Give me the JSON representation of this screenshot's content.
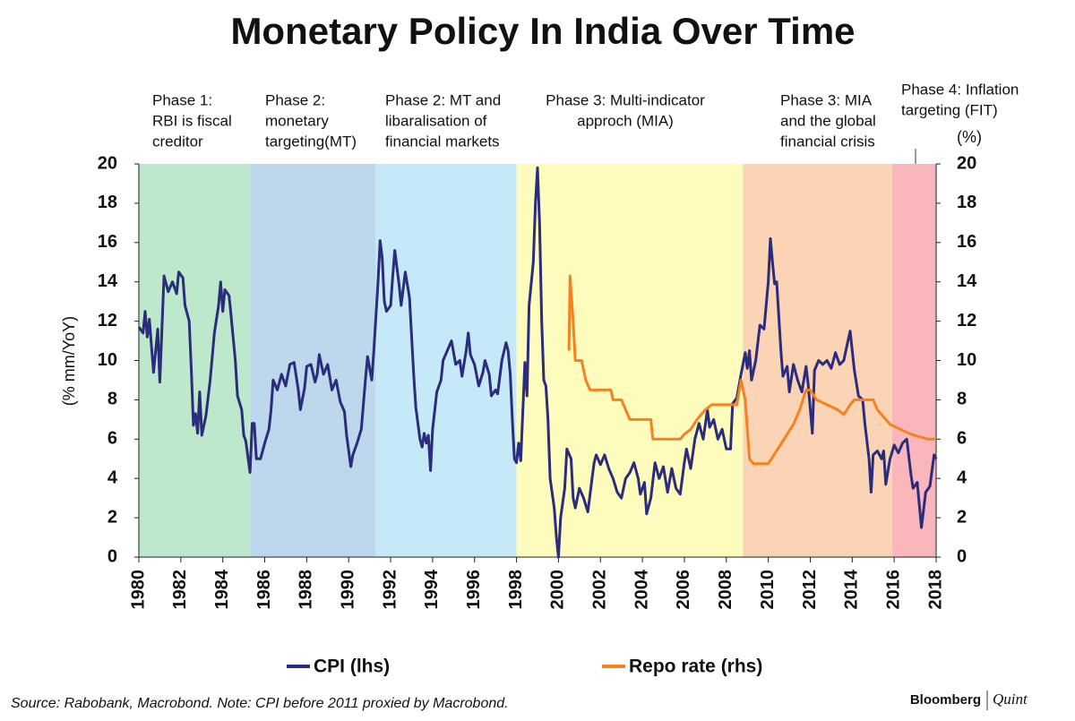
{
  "chart_data": {
    "type": "line",
    "title": "Monetary Policy In India Over Time",
    "y_label": "(% mm/YoY)",
    "y2_label": "(%)",
    "xlim": [
      1980,
      2018
    ],
    "xticks": [
      1980,
      1982,
      1984,
      1986,
      1988,
      1990,
      1992,
      1994,
      1996,
      1998,
      2000,
      2002,
      2004,
      2006,
      2008,
      2010,
      2012,
      2014,
      2016,
      2018
    ],
    "ylim": [
      0,
      20
    ],
    "yticks": [
      0,
      2,
      4,
      6,
      8,
      10,
      12,
      14,
      16,
      18,
      20
    ],
    "y2lim": [
      0,
      20
    ],
    "y2ticks": [
      0,
      2,
      4,
      6,
      8,
      10,
      12,
      14,
      16,
      18,
      20
    ],
    "phases": [
      {
        "lines": [
          "Phase 1:",
          "RBI is fiscal",
          "creditor"
        ],
        "start": 1980,
        "end": 1985.3,
        "color": "#bde8cc"
      },
      {
        "lines": [
          "Phase 2:",
          "monetary",
          "targeting(MT)"
        ],
        "start": 1985.3,
        "end": 1991.3,
        "color": "#bdd8ec"
      },
      {
        "lines": [
          "Phase 2: MT and",
          "libaralisation of",
          "financial markets"
        ],
        "start": 1991.3,
        "end": 1998.0,
        "color": "#c6e9f7"
      },
      {
        "lines": [
          "Phase 3: Multi-indicator",
          "approch (MIA)"
        ],
        "start": 1998.0,
        "end": 2008.8,
        "color": "#fdfcbd"
      },
      {
        "lines": [
          "Phase 3: MIA",
          "and the global",
          "financial crisis"
        ],
        "start": 2008.8,
        "end": 2015.9,
        "color": "#fbd4b6"
      },
      {
        "lines": [
          "Phase 4: Inflation",
          "targeting (FIT)"
        ],
        "start": 2015.9,
        "end": 2018,
        "color": "#f9b7bc"
      }
    ],
    "series": [
      {
        "name": "CPI (lhs)",
        "color": "#2b2c7c",
        "axis": "y",
        "x": [
          1980.0,
          1980.2,
          1980.3,
          1980.4,
          1980.5,
          1980.7,
          1980.9,
          1981.0,
          1981.2,
          1981.4,
          1981.6,
          1981.8,
          1981.9,
          1982.1,
          1982.2,
          1982.4,
          1982.5,
          1982.6,
          1982.7,
          1982.8,
          1982.9,
          1983.0,
          1983.2,
          1983.4,
          1983.6,
          1983.8,
          1983.9,
          1984.0,
          1984.1,
          1984.3,
          1984.4,
          1984.6,
          1984.7,
          1984.9,
          1985.0,
          1985.1,
          1985.3,
          1985.4,
          1985.5,
          1985.6,
          1985.8,
          1986.0,
          1986.2,
          1986.3,
          1986.4,
          1986.6,
          1986.8,
          1987.0,
          1987.2,
          1987.4,
          1987.6,
          1987.7,
          1987.9,
          1988.0,
          1988.2,
          1988.4,
          1988.5,
          1988.6,
          1988.8,
          1989.0,
          1989.2,
          1989.4,
          1989.6,
          1989.8,
          1989.9,
          1990.1,
          1990.2,
          1990.4,
          1990.6,
          1990.8,
          1990.9,
          1991.1,
          1991.2,
          1991.4,
          1991.5,
          1991.6,
          1991.7,
          1991.8,
          1992.0,
          1992.1,
          1992.2,
          1992.4,
          1992.5,
          1992.7,
          1992.9,
          1993.0,
          1993.1,
          1993.2,
          1993.4,
          1993.5,
          1993.6,
          1993.7,
          1993.8,
          1993.9,
          1994.0,
          1994.2,
          1994.4,
          1994.5,
          1994.7,
          1994.9,
          1995.1,
          1995.3,
          1995.4,
          1995.6,
          1995.7,
          1995.8,
          1996.0,
          1996.2,
          1996.4,
          1996.5,
          1996.7,
          1996.8,
          1997.0,
          1997.1,
          1997.3,
          1997.5,
          1997.6,
          1997.7,
          1997.8,
          1997.9,
          1998.0,
          1998.1,
          1998.2,
          1998.4,
          1998.5,
          1998.6,
          1998.8,
          1998.9,
          1999.0,
          1999.1,
          1999.2,
          1999.3,
          1999.4,
          1999.5,
          1999.6,
          1999.8,
          1999.9,
          2000.0,
          2000.1,
          2000.3,
          2000.4,
          2000.6,
          2000.7,
          2000.8,
          2001.0,
          2001.2,
          2001.4,
          2001.6,
          2001.7,
          2001.8,
          2002.0,
          2002.2,
          2002.4,
          2002.6,
          2002.8,
          2003.0,
          2003.2,
          2003.4,
          2003.6,
          2003.8,
          2003.9,
          2004.1,
          2004.2,
          2004.4,
          2004.6,
          2004.8,
          2005.0,
          2005.2,
          2005.4,
          2005.6,
          2005.8,
          2006.0,
          2006.1,
          2006.3,
          2006.5,
          2006.7,
          2006.9,
          2007.1,
          2007.2,
          2007.4,
          2007.6,
          2007.8,
          2008.0,
          2008.2,
          2008.3,
          2008.5,
          2008.7,
          2008.9,
          2009.0,
          2009.1,
          2009.2,
          2009.4,
          2009.6,
          2009.8,
          2010.0,
          2010.1,
          2010.2,
          2010.3,
          2010.4,
          2010.6,
          2010.7,
          2010.9,
          2011.0,
          2011.2,
          2011.4,
          2011.6,
          2011.8,
          2011.9,
          2012.1,
          2012.2,
          2012.4,
          2012.6,
          2012.8,
          2013.0,
          2013.2,
          2013.4,
          2013.6,
          2013.8,
          2013.9,
          2014.1,
          2014.3,
          2014.5,
          2014.6,
          2014.8,
          2014.9,
          2015.0,
          2015.2,
          2015.4,
          2015.5,
          2015.6,
          2015.8,
          2016.0,
          2016.2,
          2016.4,
          2016.6,
          2016.8,
          2016.9,
          2017.1,
          2017.3,
          2017.5,
          2017.7,
          2017.9,
          2018.0
        ],
        "values": [
          11.7,
          11.4,
          12.5,
          11.2,
          12.1,
          9.4,
          11.6,
          8.9,
          14.3,
          13.5,
          14.0,
          13.4,
          14.5,
          14.2,
          12.8,
          12.0,
          9.5,
          6.7,
          7.3,
          6.3,
          8.4,
          6.2,
          7.2,
          9.0,
          11.4,
          12.8,
          14.0,
          12.5,
          13.6,
          13.3,
          12.2,
          10.0,
          8.2,
          7.5,
          6.2,
          5.9,
          4.3,
          6.8,
          6.8,
          5.0,
          5.0,
          5.8,
          6.5,
          7.5,
          9.0,
          8.5,
          9.3,
          8.7,
          9.8,
          9.9,
          8.5,
          7.5,
          8.6,
          9.7,
          9.8,
          8.9,
          9.3,
          10.3,
          9.3,
          9.8,
          8.5,
          9.0,
          7.9,
          7.4,
          6.2,
          4.6,
          5.2,
          5.8,
          6.5,
          9.0,
          10.2,
          9.0,
          10.5,
          14.0,
          16.1,
          15.2,
          13.0,
          12.5,
          12.8,
          14.3,
          15.6,
          13.9,
          12.8,
          14.5,
          13.2,
          11.2,
          9.3,
          7.6,
          6.0,
          5.6,
          6.3,
          5.8,
          6.2,
          4.4,
          6.5,
          8.4,
          9.0,
          10.0,
          10.5,
          11.0,
          9.8,
          10.0,
          9.2,
          10.5,
          11.4,
          10.3,
          9.8,
          8.7,
          9.4,
          10.0,
          9.3,
          8.2,
          8.5,
          8.3,
          10.0,
          10.9,
          10.5,
          9.3,
          7.0,
          5.0,
          4.8,
          5.8,
          4.9,
          9.9,
          8.2,
          12.8,
          15.0,
          18.0,
          19.8,
          17.0,
          12.0,
          9.0,
          8.7,
          7.0,
          4.0,
          2.5,
          1.0,
          0.0,
          2.0,
          3.5,
          5.5,
          5.0,
          3.0,
          2.5,
          3.5,
          3.0,
          2.3,
          4.0,
          4.8,
          5.2,
          4.7,
          5.2,
          4.5,
          4.0,
          3.3,
          3.0,
          4.0,
          4.3,
          4.8,
          4.0,
          3.2,
          3.8,
          2.2,
          3.0,
          4.8,
          4.0,
          4.6,
          3.3,
          4.5,
          3.5,
          3.2,
          4.8,
          5.5,
          4.5,
          6.0,
          6.8,
          6.0,
          7.5,
          6.6,
          7.0,
          6.0,
          6.5,
          5.5,
          5.5,
          7.8,
          8.1,
          9.3,
          10.4,
          9.6,
          10.5,
          9.0,
          10.0,
          11.8,
          11.6,
          14.0,
          16.2,
          15.0,
          13.9,
          14.0,
          10.5,
          9.2,
          9.7,
          8.4,
          9.8,
          9.0,
          8.4,
          9.7,
          8.8,
          6.3,
          9.5,
          10.0,
          9.8,
          10.0,
          9.6,
          10.4,
          9.8,
          10.0,
          11.0,
          11.5,
          9.5,
          8.2,
          8.0,
          6.8,
          5.0,
          3.3,
          5.2,
          5.4,
          5.0,
          5.4,
          3.7,
          5.0,
          5.7,
          5.3,
          5.8,
          6.0,
          4.2,
          3.5,
          3.8,
          1.5,
          3.3,
          3.6,
          5.2,
          5.0
        ]
      },
      {
        "name": "Repo rate (rhs)",
        "color": "#f58220",
        "axis": "y2",
        "x": [
          2000.5,
          2000.55,
          2000.7,
          2000.8,
          2001.1,
          2001.3,
          2001.5,
          2002.5,
          2002.6,
          2003.0,
          2003.2,
          2003.4,
          2004.4,
          2004.5,
          2005.8,
          2006.0,
          2006.3,
          2006.6,
          2007.0,
          2007.3,
          2008.5,
          2008.7,
          2008.9,
          2009.1,
          2009.3,
          2010.0,
          2010.3,
          2010.6,
          2010.9,
          2011.2,
          2011.5,
          2011.8,
          2012.0,
          2012.3,
          2013.3,
          2013.6,
          2013.9,
          2014.1,
          2015.0,
          2015.2,
          2015.4,
          2015.8,
          2016.3,
          2016.8,
          2017.6,
          2018.0
        ],
        "values": [
          10.5,
          14.3,
          12.0,
          10.0,
          10.0,
          9.0,
          8.5,
          8.5,
          8.0,
          8.0,
          7.5,
          7.0,
          7.0,
          6.0,
          6.0,
          6.25,
          6.5,
          7.0,
          7.5,
          7.75,
          7.75,
          9.0,
          8.0,
          5.0,
          4.75,
          4.75,
          5.25,
          5.75,
          6.25,
          6.75,
          7.5,
          8.5,
          8.5,
          8.0,
          7.5,
          7.25,
          7.75,
          8.0,
          8.0,
          7.5,
          7.25,
          6.75,
          6.5,
          6.25,
          6.0,
          6.0
        ]
      }
    ]
  },
  "source": "Source: Rabobank, Macrobond. Note: CPI before 2011 proxied by Macrobond.",
  "branding": [
    "Bloomberg",
    "Quint"
  ]
}
